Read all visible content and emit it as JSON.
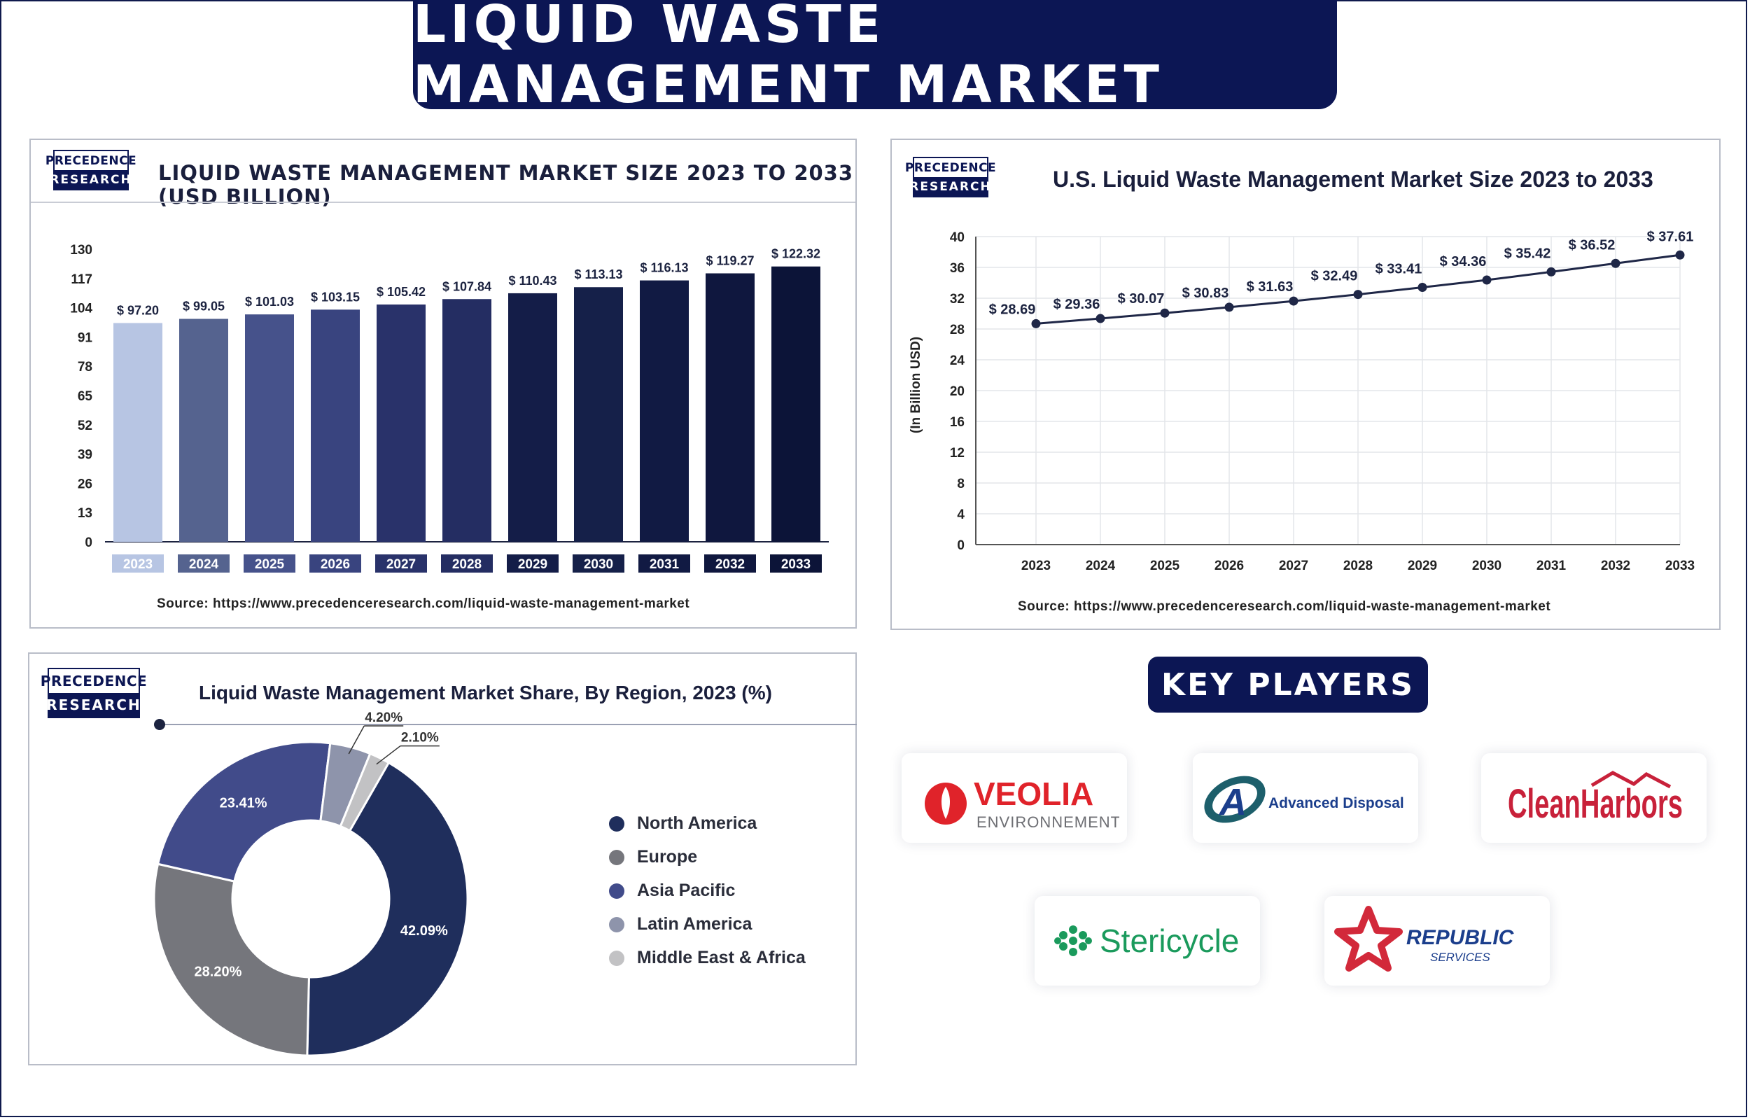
{
  "header": {
    "title": "LIQUID WASTE MANAGEMENT MARKET"
  },
  "logo": {
    "top": "PRECEDENCE",
    "bottom": "RESEARCH"
  },
  "colors": {
    "navy": "#0c1654",
    "bar_first": "#b7c5e3",
    "line": "#1f2747"
  },
  "panel1": {
    "title": "LIQUID WASTE MANAGEMENT MARKET SIZE 2023 TO 2033 (USD BILLION)",
    "source": "Source: https://www.precedenceresearch.com/liquid-waste-management-market"
  },
  "panel2": {
    "title": "U.S. Liquid Waste Management Market Size 2023 to 2033",
    "source": "Source: https://www.precedenceresearch.com/liquid-waste-management-market"
  },
  "panel3": {
    "title": "Liquid Waste Management Market Share, By Region, 2023 (%)"
  },
  "key_players": {
    "title": "KEY PLAYERS",
    "logos": [
      {
        "name": "veolia-logo",
        "text": "VEOLIA",
        "sub": "ENVIRONNEMENT"
      },
      {
        "name": "advanced-disposal-logo",
        "text": "Advanced Disposal"
      },
      {
        "name": "clean-harbors-logo",
        "text": "CleanHarbors"
      },
      {
        "name": "stericycle-logo",
        "text": "Stericycle"
      },
      {
        "name": "republic-services-logo",
        "text": "REPUBLIC",
        "sub": "SERVICES"
      }
    ]
  },
  "chart_data": [
    {
      "type": "bar",
      "title": "LIQUID WASTE MANAGEMENT MARKET SIZE 2023 TO 2033 (USD BILLION)",
      "categories": [
        "2023",
        "2024",
        "2025",
        "2026",
        "2027",
        "2028",
        "2029",
        "2030",
        "2031",
        "2032",
        "2033"
      ],
      "values": [
        97.2,
        99.05,
        101.03,
        103.15,
        105.42,
        107.84,
        110.43,
        113.13,
        116.13,
        119.27,
        122.32
      ],
      "labels": [
        "$ 97.20",
        "$ 99.05",
        "$ 101.03",
        "$ 103.15",
        "$ 105.42",
        "$ 107.84",
        "$ 110.43",
        "$ 113.13",
        "$ 116.13",
        "$ 119.27",
        "$ 122.32"
      ],
      "yticks": [
        "0",
        "13",
        "26",
        "39",
        "52",
        "65",
        "78",
        "91",
        "104",
        "117",
        "130"
      ],
      "ylim": [
        0,
        130
      ],
      "colors": [
        "#b7c5e3",
        "#55638f",
        "#46528b",
        "#39447f",
        "#29326a",
        "#242d62",
        "#141d48",
        "#152049",
        "#111a43",
        "#0f173e",
        "#0c1438"
      ]
    },
    {
      "type": "line",
      "title": "U.S. Liquid Waste Management Market Size 2023 to 2033",
      "ylabel": "(In Billion USD)",
      "categories": [
        "2023",
        "2024",
        "2025",
        "2026",
        "2027",
        "2028",
        "2029",
        "2030",
        "2031",
        "2032",
        "2033"
      ],
      "values": [
        28.69,
        29.36,
        30.07,
        30.83,
        31.63,
        32.49,
        33.41,
        34.36,
        35.42,
        36.52,
        37.61
      ],
      "labels": [
        "$ 28.69",
        "$ 29.36",
        "$ 30.07",
        "$ 30.83",
        "$ 31.63",
        "$ 32.49",
        "$ 33.41",
        "$ 34.36",
        "$ 35.42",
        "$ 36.52",
        "$ 37.61"
      ],
      "yticks": [
        "0",
        "4",
        "8",
        "12",
        "16",
        "20",
        "24",
        "28",
        "32",
        "36",
        "40"
      ],
      "ylim": [
        0,
        40
      ],
      "grid": true
    },
    {
      "type": "pie",
      "title": "Liquid Waste Management Market Share, By Region, 2023 (%)",
      "categories": [
        "North America",
        "Europe",
        "Asia Pacific",
        "Latin America",
        "Middle East & Africa"
      ],
      "values": [
        42.09,
        28.2,
        23.41,
        4.2,
        2.1
      ],
      "labels": [
        "42.09%",
        "28.20%",
        "23.41%",
        "4.20%",
        "2.10%"
      ],
      "colors": [
        "#1f2e5c",
        "#75767c",
        "#414b8a",
        "#8e94ab",
        "#c2c2c4"
      ],
      "legend": "right"
    }
  ]
}
